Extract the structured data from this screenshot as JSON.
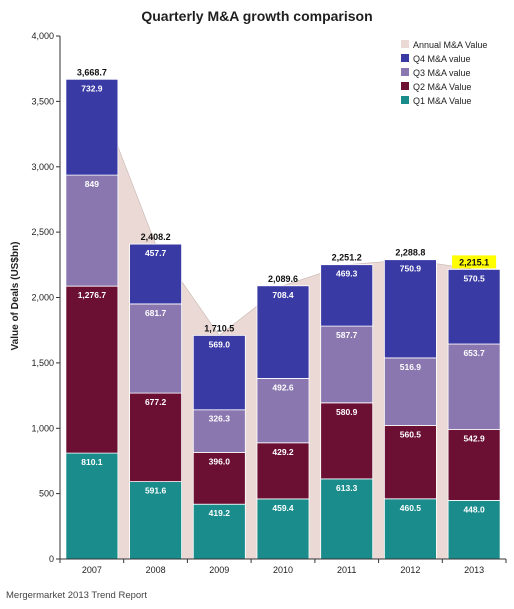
{
  "chart_data": {
    "type": "bar",
    "stacked": true,
    "title": "Quarterly M&A growth comparison",
    "ylabel": "Value of Deals (US$bn)",
    "xlabel": "",
    "ylim": [
      0,
      4000
    ],
    "yticks": [
      0,
      500,
      1000,
      1500,
      2000,
      2500,
      3000,
      3500,
      4000
    ],
    "ytick_labels": [
      "0",
      "500",
      "1,000",
      "1,500",
      "2,000",
      "2,500",
      "3,000",
      "3,500",
      "4,000"
    ],
    "categories": [
      "2007",
      "2008",
      "2009",
      "2010",
      "2011",
      "2012",
      "2013"
    ],
    "series": [
      {
        "name": "Q1 M&A Value",
        "color": "#1a8c8c",
        "values": [
          810.1,
          591.6,
          419.2,
          459.4,
          613.3,
          460.5,
          448.0
        ],
        "labels": [
          "810.1",
          "591.6",
          "419.2",
          "459.4",
          "613.3",
          "460.5",
          "448.0"
        ]
      },
      {
        "name": "Q2 M&A Value",
        "color": "#6b0f33",
        "values": [
          1276.7,
          677.2,
          396.0,
          429.2,
          580.9,
          560.5,
          542.9
        ],
        "labels": [
          "1,276.7",
          "677.2",
          "396.0",
          "429.2",
          "580.9",
          "560.5",
          "542.9"
        ]
      },
      {
        "name": "Q3 M&A value",
        "color": "#8a77b0",
        "values": [
          849,
          681.7,
          326.3,
          492.6,
          587.7,
          516.9,
          653.7
        ],
        "labels": [
          "849",
          "681.7",
          "326.3",
          "492.6",
          "587.7",
          "516.9",
          "653.7"
        ]
      },
      {
        "name": "Q4 M&A value",
        "color": "#3a3aa5",
        "values": [
          732.9,
          457.7,
          569.0,
          708.4,
          469.3,
          750.9,
          570.5
        ],
        "labels": [
          "732.9",
          "457.7",
          "569.0",
          "708.4",
          "469.3",
          "750.9",
          "570.5"
        ]
      }
    ],
    "annual": {
      "name": "Annual M&A Value",
      "color": "#ead9d5",
      "values": [
        3668.7,
        2408.2,
        1710.5,
        2089.6,
        2251.2,
        2288.8,
        2215.1
      ],
      "labels": [
        "3,668.7",
        "2,408.2",
        "1,710.5",
        "2,089.6",
        "2,251.2",
        "2,288.8",
        "2,215.1"
      ],
      "highlight_index": 6,
      "highlight_color": "#ffff00"
    },
    "legend_order": [
      "Annual M&A Value",
      "Q4 M&A value",
      "Q3 M&A value",
      "Q2 M&A Value",
      "Q1 M&A Value"
    ],
    "legend_position": "top-right",
    "grid": false
  },
  "source": "Mergermarket 2013 Trend Report"
}
